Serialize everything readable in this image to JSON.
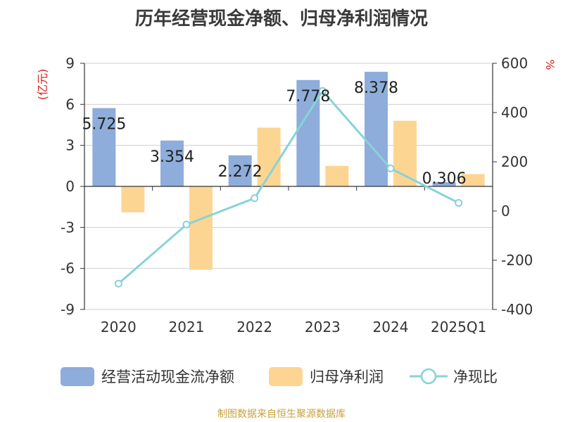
{
  "chart_data": {
    "type": "bar",
    "title": "历年经营现金净额、归母净利润情况",
    "categories": [
      "2020",
      "2021",
      "2022",
      "2023",
      "2024",
      "2025Q1"
    ],
    "series": [
      {
        "name": "经营活动现金流净额",
        "type": "bar",
        "axis": "left",
        "color": "#8eaddb",
        "values": [
          5.725,
          3.354,
          2.272,
          7.778,
          8.378,
          0.306
        ],
        "labels": [
          "5.725",
          "3.354",
          "2.272",
          "7.778",
          "8.378",
          "0.306"
        ]
      },
      {
        "name": "归母净利润",
        "type": "bar",
        "axis": "left",
        "color": "#fdd592",
        "values": [
          -1.9,
          -6.1,
          4.3,
          1.5,
          4.8,
          0.9
        ]
      },
      {
        "name": "净现比",
        "type": "line",
        "axis": "right",
        "color": "#87d3d7",
        "values": [
          -295,
          -55,
          52,
          488,
          173,
          33
        ]
      }
    ],
    "y_left": {
      "label": "(亿元)",
      "ylim": [
        -9,
        9
      ],
      "ticks": [
        9,
        6,
        3,
        0,
        -3,
        -6,
        -9
      ],
      "tick_labels": [
        "9",
        "6",
        "3",
        "0",
        "-3",
        "-6",
        "-9"
      ]
    },
    "y_right": {
      "label": "%",
      "ylim": [
        -400,
        600
      ],
      "ticks": [
        600,
        400,
        200,
        0,
        -200,
        -400
      ],
      "tick_labels": [
        "600",
        "400",
        "200",
        "0",
        "-200",
        "-400"
      ]
    },
    "grid": true,
    "legend_position": "bottom"
  },
  "source": "制图数据来自恒生聚源数据库"
}
